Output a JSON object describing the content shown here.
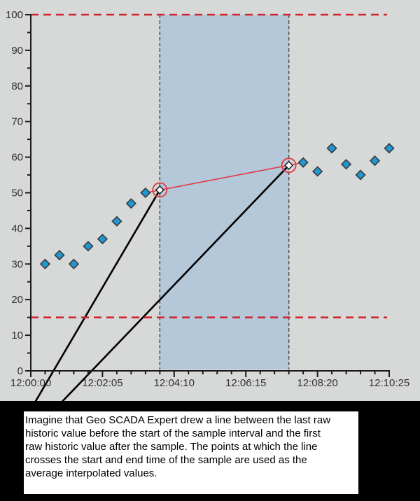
{
  "annotation": {
    "lines": [
      "Imagine that Geo SCADA Expert drew a line between the last raw",
      "historic value before the start of the sample interval and the first",
      "raw historic value after the sample. The points at which the line",
      "crosses the start and end time of the sample are used as the",
      "average interpolated values."
    ]
  },
  "chart_data": {
    "type": "scatter",
    "title": "",
    "xlabel": "",
    "ylabel": "",
    "x_axis": {
      "tick_labels": [
        "12:00:00",
        "12:02:05",
        "12:04:10",
        "12:06:15",
        "12:08:20",
        "12:10:25"
      ],
      "tick_seconds": [
        0,
        125,
        250,
        375,
        500,
        625
      ],
      "minor_step_seconds": 25,
      "range_seconds": [
        0,
        625
      ]
    },
    "y_axis": {
      "min": 0,
      "max": 100,
      "major_step": 10,
      "minor_step": 5,
      "tick_labels": [
        "0",
        "10",
        "20",
        "30",
        "40",
        "50",
        "60",
        "70",
        "80",
        "90",
        "100"
      ]
    },
    "grid": false,
    "legend": "none",
    "raw_points": [
      {
        "time": "12:00:25",
        "value": 30
      },
      {
        "time": "12:00:50",
        "value": 32.5
      },
      {
        "time": "12:01:15",
        "value": 30
      },
      {
        "time": "12:01:40",
        "value": 35
      },
      {
        "time": "12:02:05",
        "value": 37
      },
      {
        "time": "12:02:30",
        "value": 42
      },
      {
        "time": "12:02:55",
        "value": 47
      },
      {
        "time": "12:03:20",
        "value": 50
      },
      {
        "time": "12:07:55",
        "value": 58.5
      },
      {
        "time": "12:08:20",
        "value": 56
      },
      {
        "time": "12:08:45",
        "value": 62.5
      },
      {
        "time": "12:09:10",
        "value": 58
      },
      {
        "time": "12:09:35",
        "value": 55
      },
      {
        "time": "12:10:00",
        "value": 59
      },
      {
        "time": "12:10:25",
        "value": 62.5
      }
    ],
    "sample_interval": {
      "start": "12:03:45",
      "end": "12:07:30"
    },
    "interpolation_line": {
      "from": {
        "time": "12:03:20",
        "value": 50
      },
      "to": {
        "time": "12:07:55",
        "value": 58.5
      }
    },
    "interpolated_points": [
      {
        "time": "12:03:45",
        "value": 50.8
      },
      {
        "time": "12:07:30",
        "value": 57.7
      }
    ],
    "limit_lines": [
      {
        "value": 100
      },
      {
        "value": 15
      }
    ],
    "colors": {
      "background": "#d7d9d8",
      "sample_region_fill": "#b5c8d9",
      "sample_boundary": "#4d4d4d",
      "point_fill": "#1e97d3",
      "point_stroke": "#3b3b3b",
      "interpolated_point_fill": "#ffffff",
      "interpolation_red": "#e23944",
      "limit_line_red": "#cf2630",
      "axis": "#1a1a1a",
      "tick_label": "#303030",
      "callout_line": "#000000",
      "caption_band": "#000000",
      "annotation_background": "#ffffff"
    }
  }
}
